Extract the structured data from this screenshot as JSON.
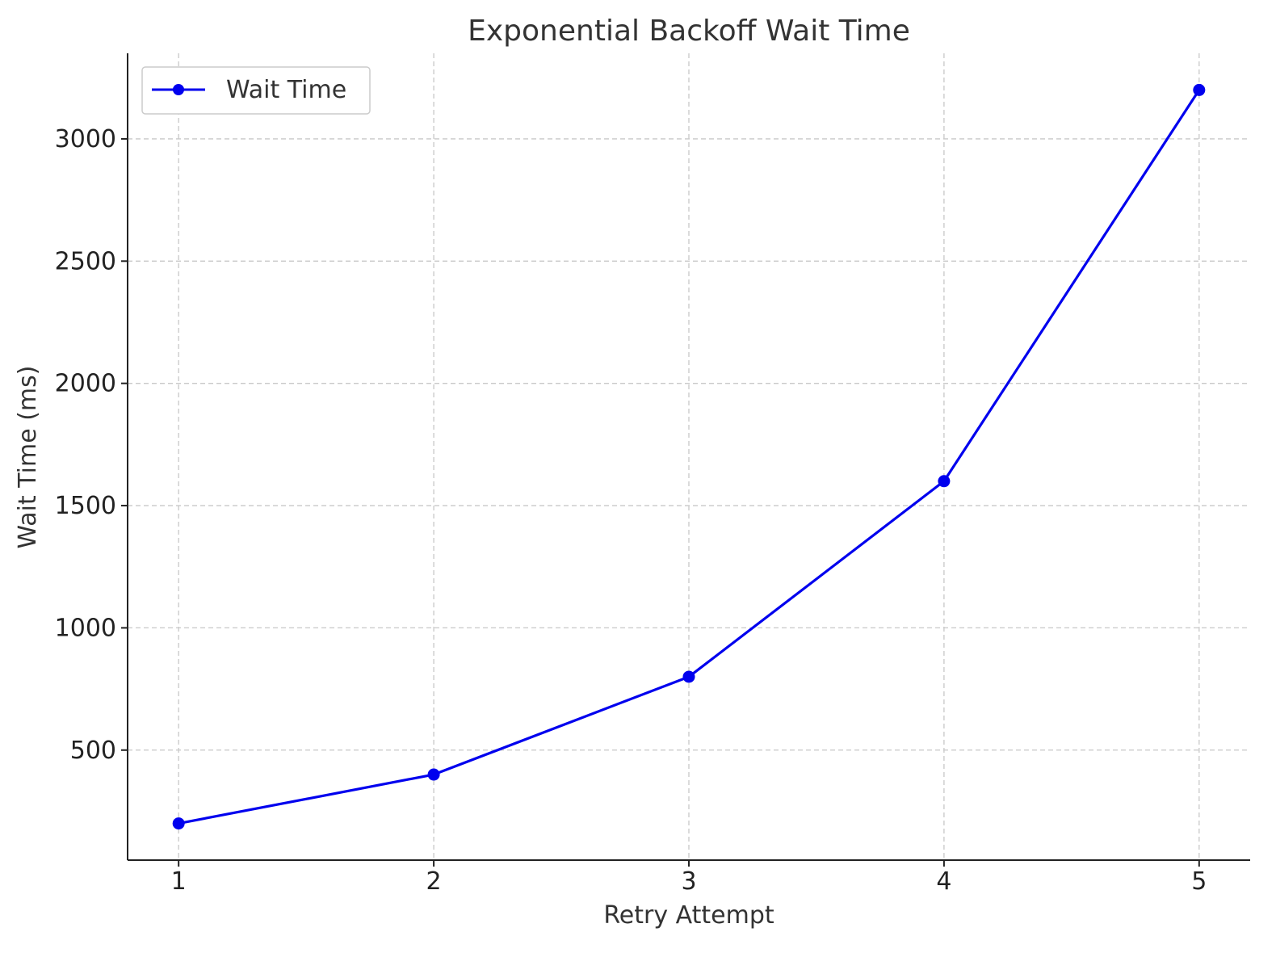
{
  "chart_data": {
    "type": "line",
    "title": "Exponential Backoff Wait Time",
    "xlabel": "Retry Attempt",
    "ylabel": "Wait Time (ms)",
    "x": [
      1,
      2,
      3,
      4,
      5
    ],
    "xticks": [
      1,
      2,
      3,
      4,
      5
    ],
    "yticks": [
      500,
      1000,
      1500,
      2000,
      2500,
      3000
    ],
    "xlim": [
      0.8,
      5.2
    ],
    "ylim": [
      50,
      3350
    ],
    "grid": true,
    "legend_position": "top-left",
    "series": [
      {
        "name": "Wait Time",
        "values": [
          200,
          400,
          800,
          1600,
          3200
        ],
        "color": "#0000ee",
        "marker": "circle"
      }
    ]
  }
}
